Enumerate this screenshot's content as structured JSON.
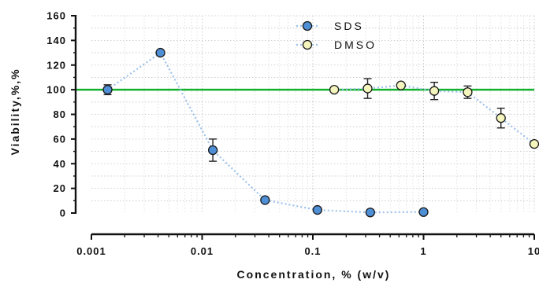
{
  "chart_data": {
    "type": "scatter",
    "xlabel": "Concentration, % (w/v)",
    "ylabel": "Viability,%,%",
    "xscale": "log",
    "xlim": [
      0.001,
      10
    ],
    "ylim": [
      0,
      160
    ],
    "x_ticks": [
      {
        "value": 0.001,
        "label": "0.001"
      },
      {
        "value": 0.01,
        "label": "0.01"
      },
      {
        "value": 0.1,
        "label": "0.1"
      },
      {
        "value": 1,
        "label": "1"
      },
      {
        "value": 10,
        "label": "10"
      }
    ],
    "y_ticks": [
      {
        "value": 0,
        "label": "0"
      },
      {
        "value": 20,
        "label": "20"
      },
      {
        "value": 40,
        "label": "40"
      },
      {
        "value": 60,
        "label": "60"
      },
      {
        "value": 80,
        "label": "80"
      },
      {
        "value": 100,
        "label": "100"
      },
      {
        "value": 120,
        "label": "120"
      },
      {
        "value": 140,
        "label": "140"
      },
      {
        "value": 160,
        "label": "160"
      }
    ],
    "grid": "dotted",
    "legend_position": "top",
    "reference_line": {
      "y": 100,
      "color": "#11b02b"
    },
    "series": [
      {
        "name": "SDS",
        "color": "#4f8fd6",
        "line_color": "#9cc2ec",
        "x": [
          0.0014,
          0.0042,
          0.0125,
          0.037,
          0.11,
          0.33,
          1.0
        ],
        "y": [
          100,
          130,
          51,
          10.5,
          2.5,
          0.5,
          0.8
        ],
        "err": [
          4,
          0,
          9,
          0,
          0,
          0,
          0
        ]
      },
      {
        "name": "DMSO",
        "color": "#f4f4bd",
        "line_color": "#9cc2ec",
        "x": [
          0.156,
          0.3125,
          0.625,
          1.25,
          2.5,
          5,
          10
        ],
        "y": [
          100,
          101,
          103.5,
          99,
          98,
          77,
          56
        ],
        "err": [
          0,
          8,
          0,
          7,
          5,
          8,
          0
        ]
      }
    ]
  }
}
